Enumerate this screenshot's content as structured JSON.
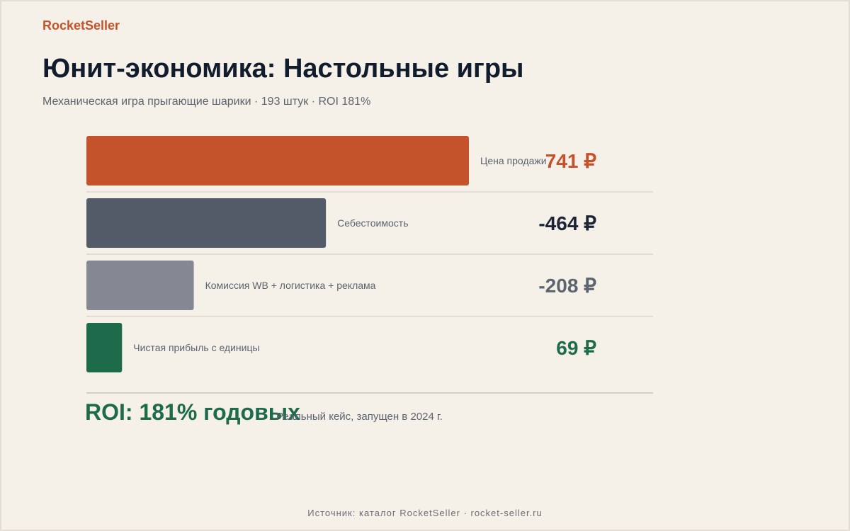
{
  "brand": "RocketSeller",
  "title": "Юнит-экономика: Настольные игры",
  "subtitle": "Механическая игра прыгающие шарики · 193 штук · ROI 181%",
  "colors": {
    "accent": "#c4522a",
    "cost": "#545b68",
    "fees": "#858892",
    "profit": "#1e6b4c",
    "cost_value": "#1c2535",
    "fees_value": "#5c6470"
  },
  "chart_data": {
    "type": "bar",
    "orientation": "horizontal",
    "categories": [
      "Цена продажи",
      "Себестоимость",
      "Комиссия WB + логистика + реклама",
      "Чистая прибыль с единицы"
    ],
    "values": [
      741,
      464,
      208,
      69
    ],
    "value_labels": [
      "741 ₽",
      "-464 ₽",
      "-208 ₽",
      "69 ₽"
    ],
    "unit": "₽",
    "grid": false,
    "legend": "none"
  },
  "summary": {
    "roi": "ROI: 181% годовых",
    "note": "Реальный кейс, запущен в 2024 г."
  },
  "footer": "Источник: каталог RocketSeller · rocket-seller.ru"
}
